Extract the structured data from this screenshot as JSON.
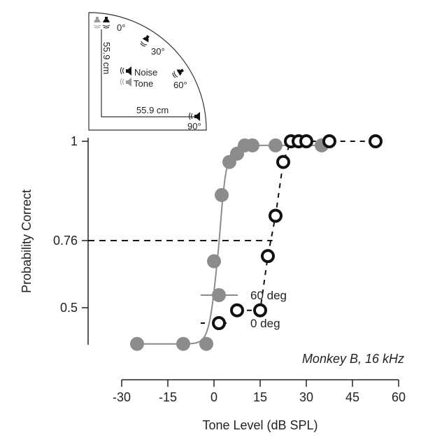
{
  "inset": {
    "labels": {
      "deg0": "0°",
      "deg30": "30°",
      "deg60": "60°",
      "deg90": "90°",
      "noise": "Noise",
      "tone": "Tone",
      "dist_vertical": "55.9 cm",
      "dist_horizontal": "55.9 cm"
    }
  },
  "chart_data": {
    "type": "scatter",
    "xlabel": "Tone Level (dB SPL)",
    "ylabel": "Probability Correct",
    "xlim": [
      -30,
      60
    ],
    "xticks": [
      -30,
      -15,
      0,
      15,
      30,
      45,
      60
    ],
    "xtick_labels": [
      "-30",
      "-15",
      "0",
      "15",
      "30",
      "45",
      "60"
    ],
    "yticks": [
      0.5,
      0.76,
      1
    ],
    "ytick_labels": [
      "0.5",
      "0.76",
      "1"
    ],
    "annotation": "Monkey B, 16 kHz",
    "threshold": {
      "y": 0.76,
      "x_end": 19
    },
    "legend_position": "right",
    "series": [
      {
        "name": "60 deg",
        "color": "#8c8c8c",
        "marker": "filled-circle",
        "line": "solid-fit",
        "x": [
          -25,
          -10,
          -2.5,
          0,
          2.5,
          5,
          7.5,
          10,
          12.5,
          20,
          35
        ],
        "y": [
          0.36,
          0.36,
          0.36,
          0.68,
          0.87,
          0.95,
          0.97,
          0.99,
          0.99,
          0.99,
          0.99
        ],
        "fit": {
          "min": 0.36,
          "max": 0.99,
          "mid": 1.0,
          "slope": 0.75
        }
      },
      {
        "name": "0 deg",
        "color": "#111111",
        "marker": "open-circle",
        "line": "dashed",
        "x": [
          7.5,
          15,
          17.5,
          20,
          22.5,
          25,
          27.5,
          30,
          37.5,
          52.5
        ],
        "y": [
          0.49,
          0.49,
          0.7,
          0.82,
          0.95,
          1.0,
          1.0,
          1.0,
          1.0,
          1.0
        ]
      }
    ]
  }
}
